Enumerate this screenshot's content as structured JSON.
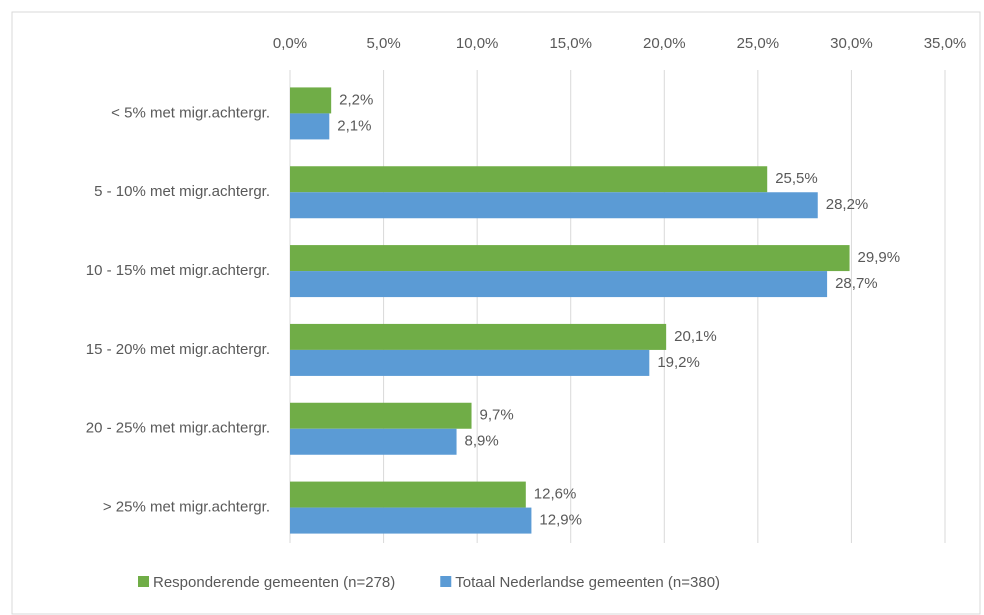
{
  "chart_data": {
    "type": "hbar",
    "categories": [
      "< 5% met migr.achtergr.",
      "5 - 10% met migr.achtergr.",
      "10 - 15% met migr.achtergr.",
      "15 - 20% met migr.achtergr.",
      "20 - 25% met migr.achtergr.",
      "> 25% met migr.achtergr."
    ],
    "series": [
      {
        "name": "Responderende gemeenten (n=278)",
        "color": "#70ad47",
        "values": [
          2.2,
          25.5,
          29.9,
          20.1,
          9.7,
          12.6
        ],
        "value_labels": [
          "2,2%",
          "25,5%",
          "29,9%",
          "20,1%",
          "9,7%",
          "12,6%"
        ]
      },
      {
        "name": "Totaal Nederlandse gemeenten (n=380)",
        "color": "#5b9bd5",
        "values": [
          2.1,
          28.2,
          28.7,
          19.2,
          8.9,
          12.9
        ],
        "value_labels": [
          "2,1%",
          "28,2%",
          "28,7%",
          "19,2%",
          "8,9%",
          "12,9%"
        ]
      }
    ],
    "xlim": [
      0,
      35
    ],
    "xticks": [
      {
        "value": 0,
        "label": "0,0%"
      },
      {
        "value": 5,
        "label": "5,0%"
      },
      {
        "value": 10,
        "label": "10,0%"
      },
      {
        "value": 15,
        "label": "15,0%"
      },
      {
        "value": 20,
        "label": "20,0%"
      },
      {
        "value": 25,
        "label": "25,0%"
      },
      {
        "value": 30,
        "label": "30,0%"
      },
      {
        "value": 35,
        "label": "35,0%"
      }
    ],
    "grid": true,
    "legend": "bottom"
  }
}
